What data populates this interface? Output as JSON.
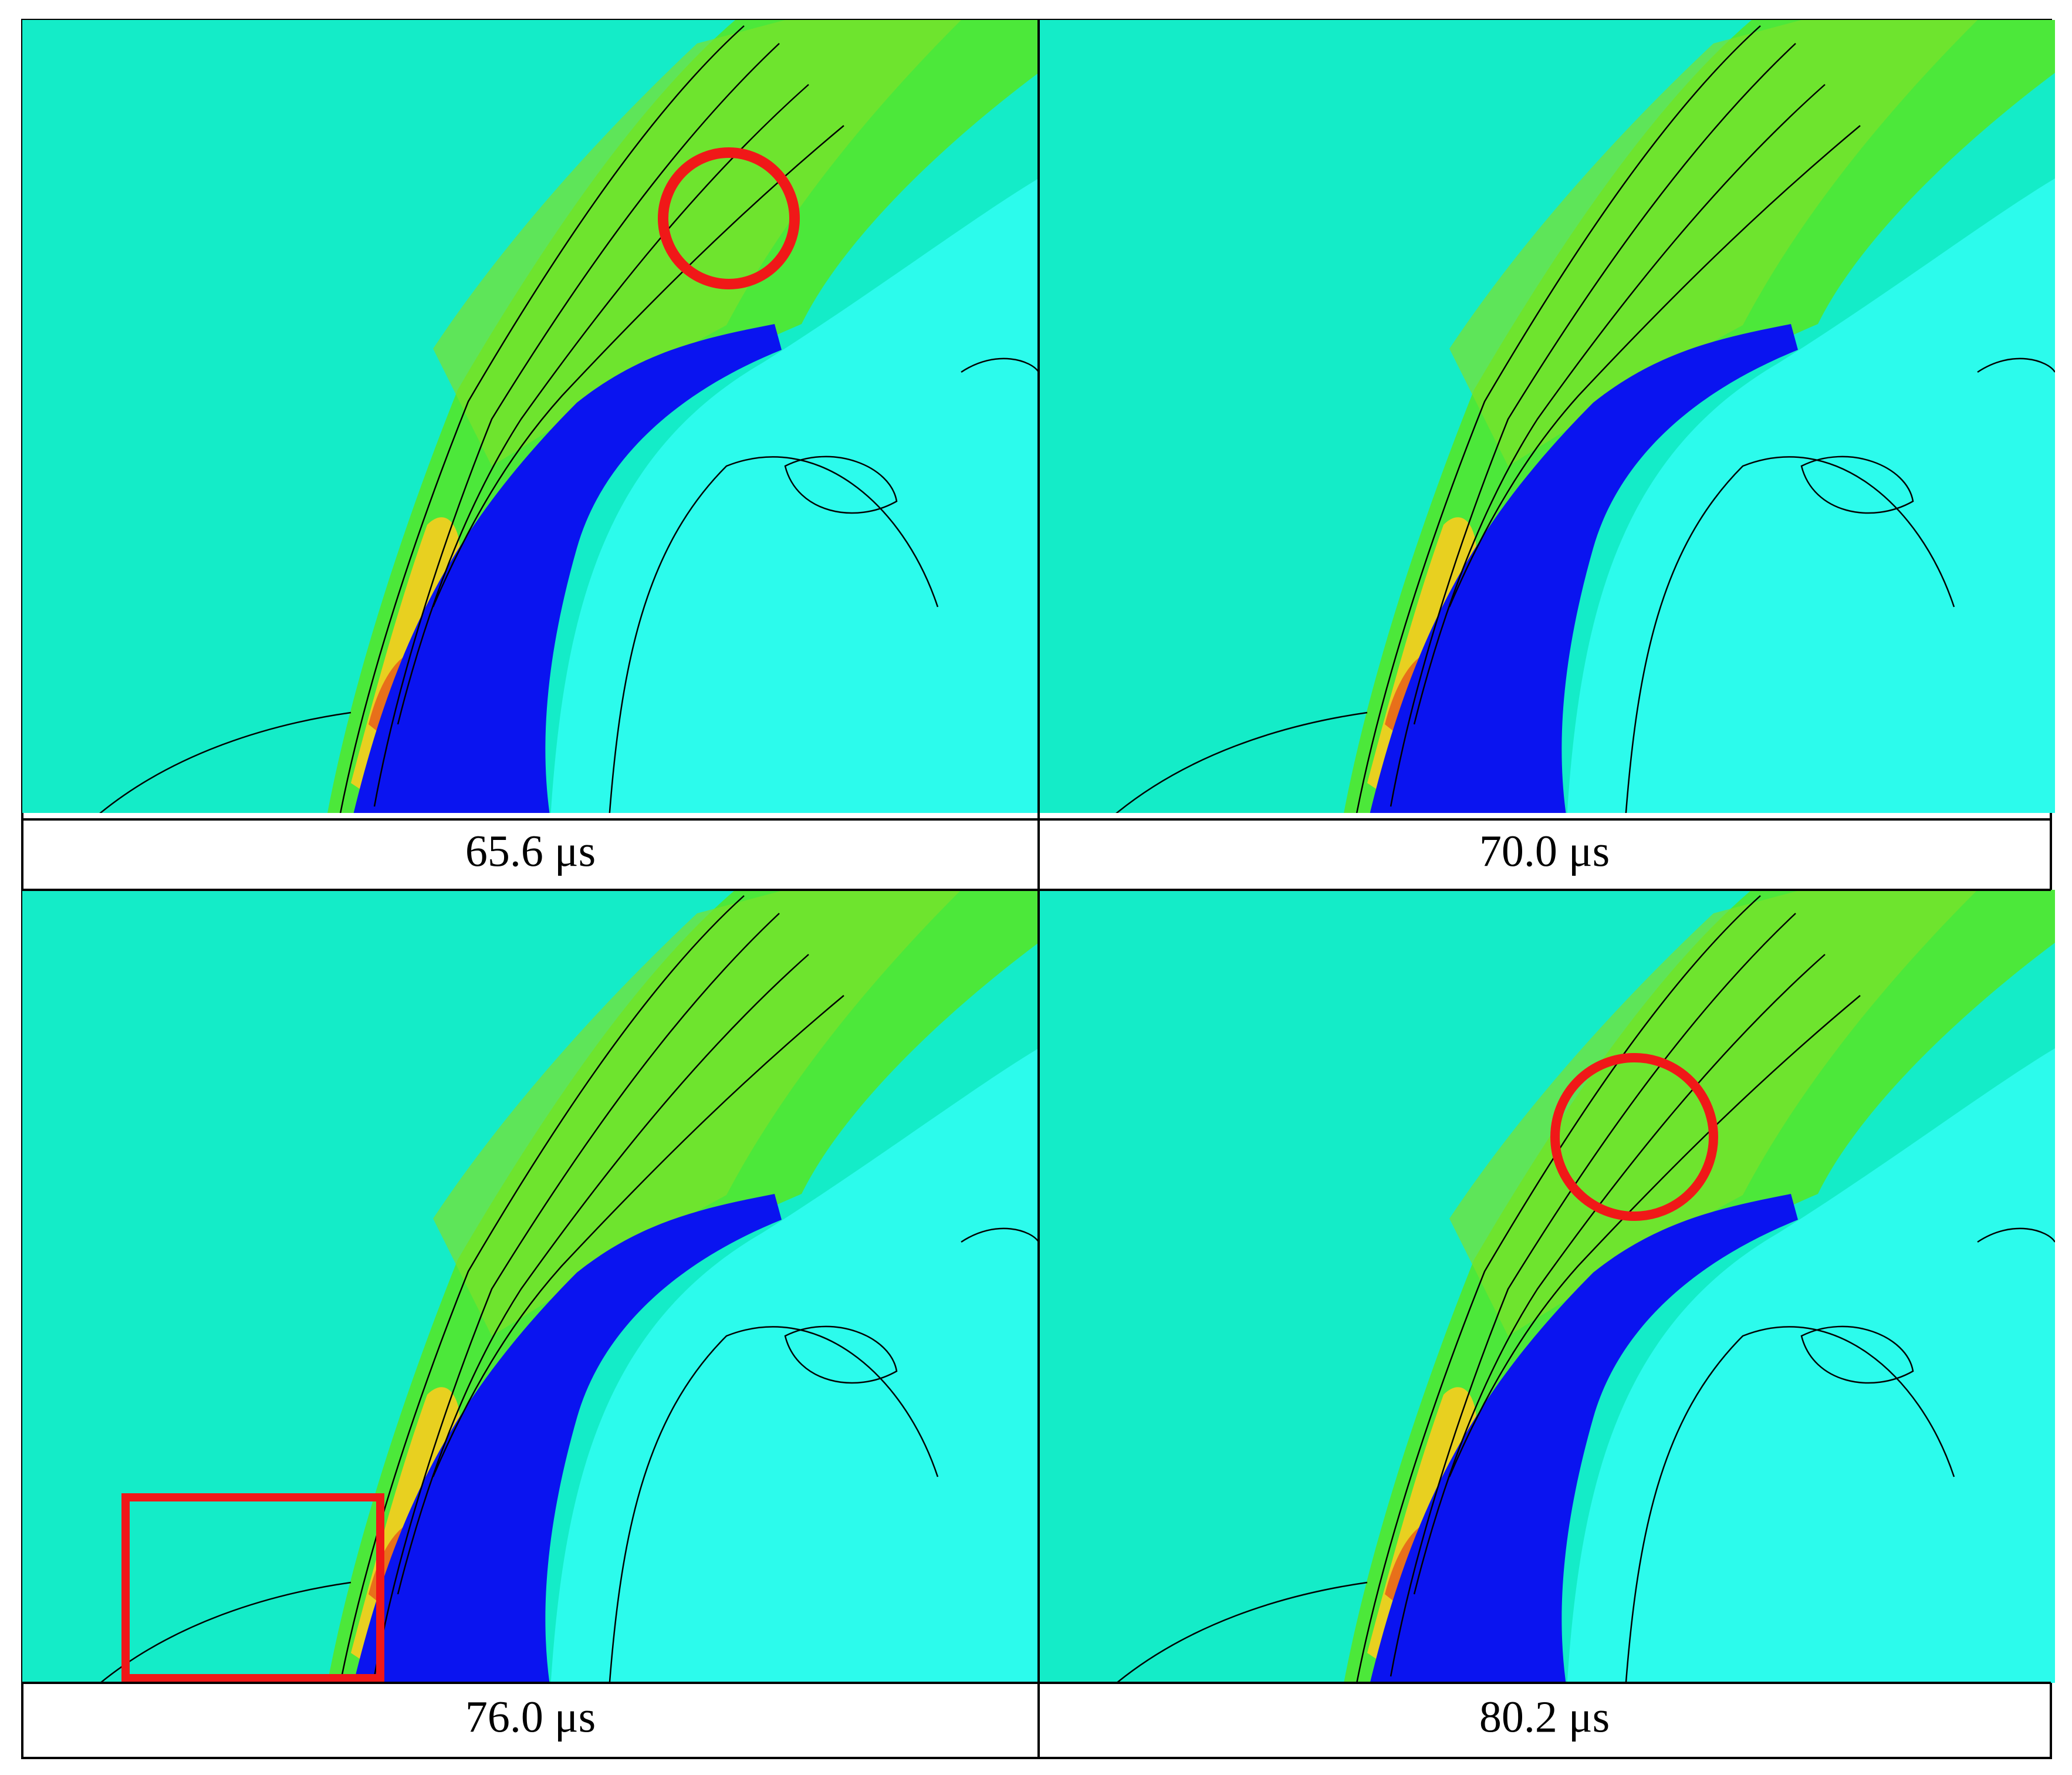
{
  "panels": [
    {
      "caption": "65.6 μs"
    },
    {
      "caption": "70.0 μs"
    },
    {
      "caption": "76.0 μs"
    },
    {
      "caption": "80.2 μs"
    }
  ]
}
